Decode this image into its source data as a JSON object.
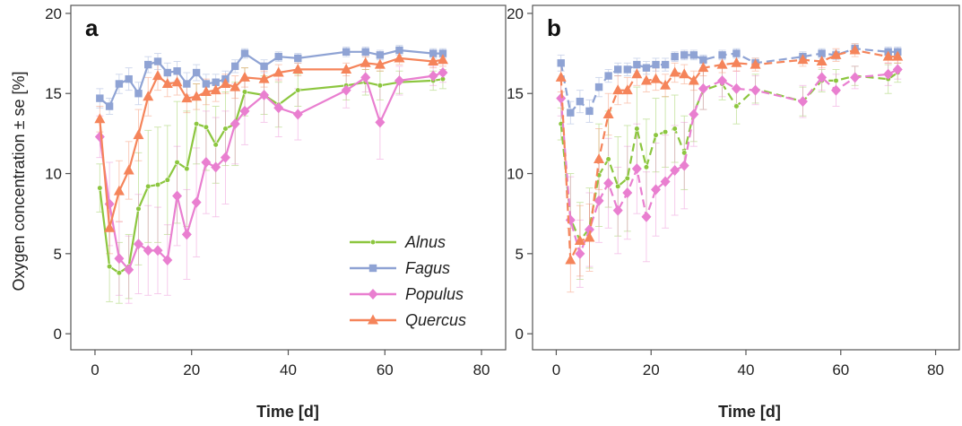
{
  "figure": {
    "ylabel": "Oxygen concentration ± se [%]",
    "xlabel": "Time [d]"
  },
  "legend": {
    "items": [
      {
        "name": "Alnus",
        "color": "#8cc63f",
        "marker": "circle"
      },
      {
        "name": "Fagus",
        "color": "#8fa3d4",
        "marker": "square"
      },
      {
        "name": "Populus",
        "color": "#e97fd0",
        "marker": "diamond"
      },
      {
        "name": "Quercus",
        "color": "#f5845a",
        "marker": "triangle"
      }
    ]
  },
  "chart_data": [
    {
      "type": "line",
      "panel_label": "a",
      "xlim": [
        -5,
        85
      ],
      "ylim": [
        -1,
        20.5
      ],
      "xticks": [
        0,
        20,
        40,
        60,
        80
      ],
      "yticks": [
        0,
        5,
        10,
        15,
        20
      ],
      "grid": false,
      "line_style": "solid",
      "legend_position": "bottom-right",
      "series": [
        {
          "name": "Alnus",
          "color": "#8cc63f",
          "marker": "circle",
          "x": [
            1,
            3,
            5,
            7,
            9,
            11,
            13,
            15,
            17,
            19,
            21,
            23,
            25,
            27,
            29,
            31,
            35,
            38,
            42,
            52,
            56,
            59,
            63,
            70,
            72
          ],
          "y": [
            9.1,
            4.2,
            3.8,
            4.2,
            7.8,
            9.2,
            9.3,
            9.6,
            10.7,
            10.3,
            13.1,
            12.9,
            11.8,
            12.8,
            13.1,
            15.1,
            14.9,
            14.3,
            15.2,
            15.5,
            15.7,
            15.5,
            15.7,
            15.8,
            15.9
          ],
          "se": [
            1.5,
            2.2,
            1.9,
            2.0,
            3.5,
            3.5,
            3.6,
            3.4,
            3.8,
            3.6,
            2.5,
            2.7,
            2.4,
            2.3,
            2.6,
            1.5,
            1.2,
            1.4,
            1.0,
            0.9,
            0.8,
            0.9,
            0.7,
            0.6,
            0.6
          ]
        },
        {
          "name": "Fagus",
          "color": "#8fa3d4",
          "marker": "square",
          "x": [
            1,
            3,
            5,
            7,
            9,
            11,
            13,
            15,
            17,
            19,
            21,
            23,
            25,
            27,
            29,
            31,
            35,
            38,
            42,
            52,
            56,
            59,
            63,
            70,
            72
          ],
          "y": [
            14.7,
            14.2,
            15.6,
            15.9,
            15.0,
            16.8,
            17.0,
            16.3,
            16.4,
            15.6,
            16.3,
            15.6,
            15.7,
            15.9,
            16.7,
            17.5,
            16.7,
            17.3,
            17.2,
            17.6,
            17.6,
            17.4,
            17.7,
            17.5,
            17.5
          ],
          "se": [
            0.6,
            0.5,
            0.6,
            0.7,
            0.7,
            0.5,
            0.5,
            0.6,
            0.6,
            0.7,
            0.5,
            0.6,
            0.5,
            0.5,
            0.4,
            0.3,
            0.4,
            0.3,
            0.3,
            0.3,
            0.3,
            0.3,
            0.3,
            0.3,
            0.3
          ]
        },
        {
          "name": "Populus",
          "color": "#e97fd0",
          "marker": "diamond",
          "x": [
            1,
            3,
            5,
            7,
            9,
            11,
            13,
            15,
            17,
            19,
            21,
            23,
            25,
            27,
            29,
            31,
            35,
            38,
            42,
            52,
            56,
            59,
            63,
            70,
            72
          ],
          "y": [
            12.3,
            8.1,
            4.7,
            4.0,
            5.6,
            5.2,
            5.2,
            4.6,
            8.6,
            6.2,
            8.2,
            10.7,
            10.4,
            11.0,
            13.1,
            13.9,
            14.9,
            14.1,
            13.7,
            15.2,
            16.0,
            13.2,
            15.8,
            16.1,
            16.3
          ],
          "se": [
            1.3,
            2.6,
            2.3,
            2.1,
            3.1,
            2.8,
            2.7,
            2.2,
            3.1,
            2.8,
            3.4,
            3.2,
            3.1,
            2.9,
            2.5,
            2.1,
            1.7,
            1.8,
            1.6,
            1.1,
            0.9,
            2.3,
            0.9,
            0.6,
            0.6
          ]
        },
        {
          "name": "Quercus",
          "color": "#f5845a",
          "marker": "triangle",
          "x": [
            1,
            3,
            5,
            7,
            9,
            11,
            13,
            15,
            17,
            19,
            21,
            23,
            25,
            27,
            29,
            31,
            35,
            38,
            42,
            52,
            56,
            59,
            63,
            70,
            72
          ],
          "y": [
            13.4,
            6.6,
            8.9,
            10.2,
            12.4,
            14.8,
            16.1,
            15.6,
            15.7,
            14.7,
            14.8,
            15.1,
            15.2,
            15.6,
            15.4,
            16.0,
            15.9,
            16.3,
            16.5,
            16.5,
            16.9,
            16.8,
            17.2,
            17.0,
            17.1
          ],
          "se": [
            0.8,
            1.6,
            1.9,
            1.8,
            1.6,
            1.2,
            0.9,
            0.8,
            0.8,
            0.9,
            0.8,
            0.8,
            0.7,
            0.6,
            0.7,
            0.6,
            0.5,
            0.5,
            0.4,
            0.4,
            0.4,
            0.4,
            0.4,
            0.4,
            0.4
          ]
        }
      ]
    },
    {
      "type": "line",
      "panel_label": "b",
      "xlim": [
        -5,
        85
      ],
      "ylim": [
        -1,
        20.5
      ],
      "xticks": [
        0,
        20,
        40,
        60,
        80
      ],
      "yticks": [
        0,
        5,
        10,
        15,
        20
      ],
      "grid": false,
      "line_style": "dashed",
      "series": [
        {
          "name": "Alnus",
          "color": "#8cc63f",
          "marker": "circle",
          "x": [
            1,
            3,
            5,
            7,
            9,
            11,
            13,
            15,
            17,
            19,
            21,
            23,
            25,
            27,
            29,
            31,
            35,
            38,
            42,
            52,
            56,
            59,
            63,
            70,
            72
          ],
          "y": [
            13.1,
            7.2,
            5.8,
            6.6,
            9.9,
            10.9,
            9.2,
            9.7,
            12.8,
            10.4,
            12.4,
            12.6,
            12.8,
            11.3,
            13.8,
            15.2,
            15.6,
            14.2,
            15.3,
            14.5,
            15.8,
            15.8,
            16.1,
            15.9,
            16.3
          ],
          "se": [
            1.0,
            2.8,
            2.4,
            2.5,
            3.2,
            3.0,
            3.1,
            3.3,
            2.6,
            3.0,
            2.3,
            2.2,
            2.1,
            2.3,
            1.8,
            1.2,
            1.0,
            1.1,
            0.9,
            0.9,
            0.7,
            0.7,
            0.6,
            0.9,
            0.6
          ]
        },
        {
          "name": "Fagus",
          "color": "#8fa3d4",
          "marker": "square",
          "x": [
            1,
            3,
            5,
            7,
            9,
            11,
            13,
            15,
            17,
            19,
            21,
            23,
            25,
            27,
            29,
            31,
            35,
            38,
            42,
            52,
            56,
            59,
            63,
            70,
            72
          ],
          "y": [
            16.9,
            13.8,
            14.5,
            13.9,
            15.4,
            16.1,
            16.5,
            16.5,
            16.8,
            16.6,
            16.8,
            16.8,
            17.3,
            17.4,
            17.4,
            17.1,
            17.4,
            17.5,
            16.9,
            17.3,
            17.5,
            17.4,
            17.8,
            17.6,
            17.6
          ],
          "se": [
            0.5,
            0.7,
            0.7,
            0.7,
            0.6,
            0.4,
            0.4,
            0.4,
            0.4,
            0.4,
            0.4,
            0.4,
            0.3,
            0.3,
            0.3,
            0.3,
            0.3,
            0.3,
            0.3,
            0.3,
            0.3,
            0.3,
            0.3,
            0.3,
            0.3
          ]
        },
        {
          "name": "Populus",
          "color": "#e97fd0",
          "marker": "diamond",
          "x": [
            1,
            3,
            5,
            7,
            9,
            11,
            13,
            15,
            17,
            19,
            21,
            23,
            25,
            27,
            29,
            31,
            35,
            38,
            42,
            52,
            56,
            59,
            63,
            70,
            72
          ],
          "y": [
            14.7,
            7.1,
            5.0,
            6.5,
            8.3,
            9.4,
            7.7,
            8.8,
            10.3,
            7.3,
            9.0,
            9.5,
            10.2,
            10.5,
            13.7,
            15.3,
            15.8,
            15.3,
            15.2,
            14.5,
            16.0,
            15.2,
            16.0,
            16.2,
            16.5
          ],
          "se": [
            1.1,
            2.7,
            2.1,
            2.3,
            2.6,
            2.8,
            2.7,
            2.9,
            2.8,
            2.8,
            2.9,
            2.9,
            2.8,
            2.7,
            2.0,
            1.3,
            1.0,
            1.1,
            0.9,
            1.0,
            0.8,
            1.0,
            0.7,
            0.7,
            0.6
          ]
        },
        {
          "name": "Quercus",
          "color": "#f5845a",
          "marker": "triangle",
          "x": [
            1,
            3,
            5,
            7,
            9,
            11,
            13,
            15,
            17,
            19,
            21,
            23,
            25,
            27,
            29,
            31,
            35,
            38,
            42,
            52,
            56,
            59,
            63,
            70,
            72
          ],
          "y": [
            16.0,
            4.6,
            5.8,
            6.0,
            10.9,
            13.7,
            15.2,
            15.2,
            16.2,
            15.8,
            15.9,
            15.5,
            16.3,
            16.2,
            15.8,
            16.6,
            16.8,
            16.9,
            16.8,
            17.1,
            17.0,
            17.4,
            17.7,
            17.3,
            17.3
          ],
          "se": [
            0.9,
            2.0,
            2.2,
            2.1,
            1.9,
            1.3,
            0.9,
            0.8,
            0.7,
            0.7,
            0.7,
            0.7,
            0.6,
            0.6,
            0.6,
            0.5,
            0.5,
            0.5,
            0.4,
            0.4,
            0.4,
            0.4,
            0.4,
            0.4,
            0.4
          ]
        }
      ]
    }
  ]
}
